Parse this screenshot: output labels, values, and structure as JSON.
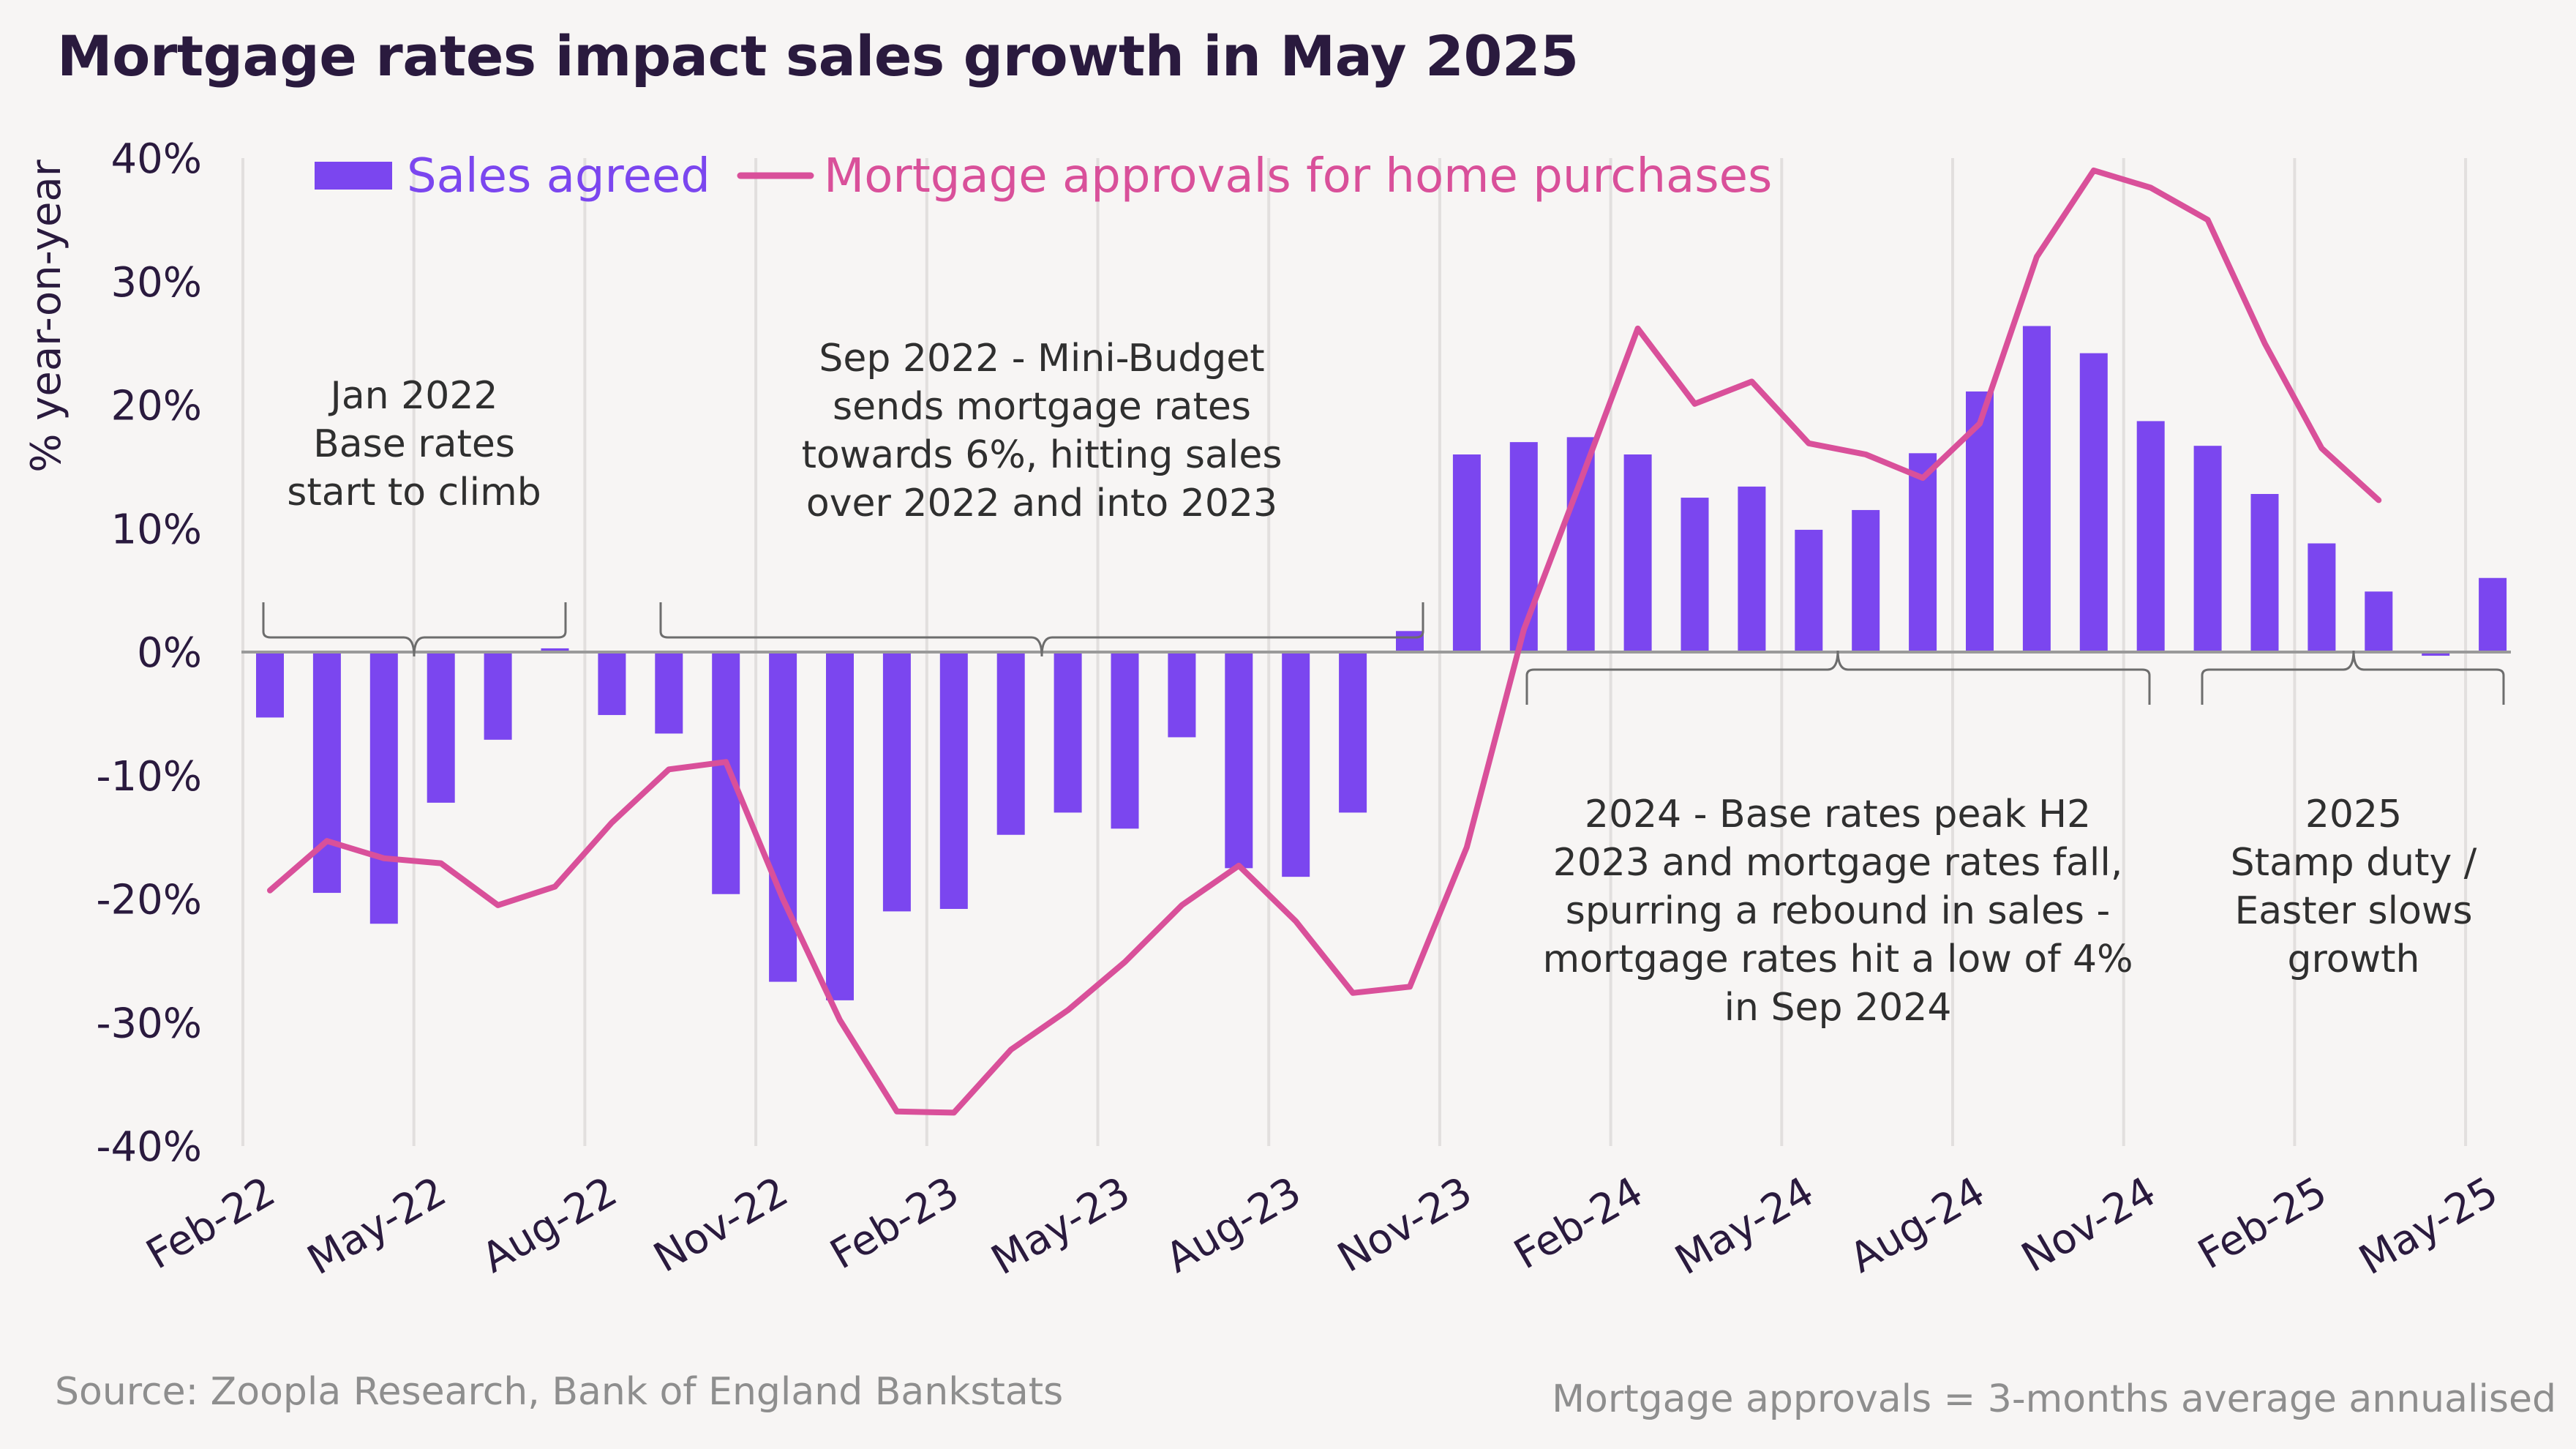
{
  "title": "Mortgage rates impact sales growth in May 2025",
  "source": "Source: Zoopla Research, Bank of England Bankstats",
  "note": "Mortgage approvals = 3-months average annualised",
  "colors": {
    "bar": "#7b46ef",
    "line": "#d9509a",
    "text": "#2a1a3e",
    "grid": "#e2dfde"
  },
  "chart_data": {
    "type": "bar",
    "ylabel": "% year-on-year",
    "ylim": [
      -40,
      40
    ],
    "yticks": [
      "40%",
      "30%",
      "20%",
      "10%",
      "0%",
      "-10%",
      "-20%",
      "-30%",
      "-40%"
    ],
    "xtick_labels": [
      "Feb-22",
      "May-22",
      "Aug-22",
      "Nov-22",
      "Feb-23",
      "May-23",
      "Aug-23",
      "Nov-23",
      "Feb-24",
      "May-24",
      "Aug-24",
      "Nov-24",
      "Feb-25",
      "May-25"
    ],
    "categories": [
      "Feb-22",
      "Mar-22",
      "Apr-22",
      "May-22",
      "Jun-22",
      "Jul-22",
      "Aug-22",
      "Sep-22",
      "Oct-22",
      "Nov-22",
      "Dec-22",
      "Jan-23",
      "Feb-23",
      "Mar-23",
      "Apr-23",
      "May-23",
      "Jun-23",
      "Jul-23",
      "Aug-23",
      "Sep-23",
      "Oct-23",
      "Nov-23",
      "Dec-23",
      "Jan-24",
      "Feb-24",
      "Mar-24",
      "Apr-24",
      "May-24",
      "Jun-24",
      "Jul-24",
      "Aug-24",
      "Sep-24",
      "Oct-24",
      "Nov-24",
      "Dec-24",
      "Jan-25",
      "Feb-25",
      "Mar-25",
      "Apr-25",
      "May-25"
    ],
    "series": [
      {
        "name": "Sales agreed",
        "type": "bar",
        "values": [
          -5.3,
          -19.5,
          -22.0,
          -12.2,
          -7.1,
          0.3,
          -5.1,
          -6.6,
          -19.6,
          -26.7,
          -28.2,
          -21.0,
          -20.8,
          -14.8,
          -13.0,
          -14.3,
          -6.9,
          -17.5,
          -18.2,
          -13.0,
          1.7,
          16.0,
          17.0,
          17.4,
          16.0,
          12.5,
          13.4,
          9.9,
          11.5,
          16.1,
          21.1,
          26.4,
          24.2,
          18.7,
          16.7,
          12.8,
          8.8,
          4.9,
          -0.3,
          6.0
        ]
      },
      {
        "name": "Mortgage approvals for home purchases",
        "type": "line",
        "values": [
          -19.3,
          -15.3,
          -16.7,
          -17.1,
          -20.5,
          -19.0,
          -13.8,
          -9.5,
          -8.9,
          -20.0,
          -29.8,
          -37.2,
          -37.3,
          -32.2,
          -29.0,
          -25.1,
          -20.5,
          -17.3,
          -21.8,
          -27.6,
          -27.1,
          -15.8,
          1.8,
          13.9,
          26.2,
          20.1,
          21.9,
          16.9,
          16.0,
          14.1,
          18.5,
          32.0,
          39.0,
          37.6,
          35.0,
          25.0,
          16.5,
          12.3,
          null,
          null
        ]
      }
    ],
    "annotations": [
      {
        "text": [
          "Jan 2022",
          "Base rates",
          "start to climb"
        ]
      },
      {
        "text": [
          "Sep 2022 - Mini-Budget",
          "sends mortgage rates",
          "towards 6%, hitting sales",
          "over 2022 and into 2023"
        ]
      },
      {
        "text": [
          "2024 - Base rates peak H2",
          "2023 and mortgage rates fall,",
          "spurring a rebound in sales -",
          "mortgage rates hit a low of 4%",
          "in Sep 2024"
        ]
      },
      {
        "text": [
          "2025",
          "Stamp duty /",
          "Easter slows",
          "growth"
        ]
      }
    ]
  }
}
